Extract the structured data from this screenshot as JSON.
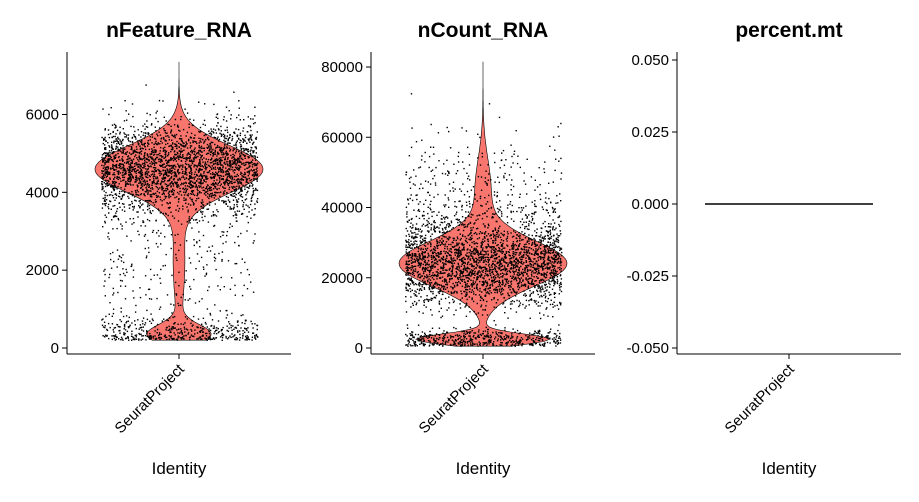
{
  "chart_data": [
    {
      "type": "violin",
      "title": "nFeature_RNA",
      "xlabel": "Identity",
      "ylabel": "",
      "categories": [
        "SeuratProject"
      ],
      "color": "#F8766D",
      "yticks": [
        0,
        2000,
        4000,
        6000
      ],
      "ylim": [
        0,
        7400
      ],
      "y_max": 7350,
      "y_min": 200,
      "n_points": 3400,
      "distribution": [
        {
          "center": 4600,
          "sd": 600,
          "weight": 0.78
        },
        {
          "center": 350,
          "sd": 250,
          "weight": 0.12
        },
        {
          "center": 2200,
          "sd": 1100,
          "weight": 0.1
        }
      ]
    },
    {
      "type": "violin",
      "title": "nCount_RNA",
      "xlabel": "Identity",
      "ylabel": "",
      "categories": [
        "SeuratProject"
      ],
      "color": "#F8766D",
      "yticks": [
        0,
        20000,
        40000,
        60000,
        80000
      ],
      "ylim": [
        0,
        82000
      ],
      "y_max": 81500,
      "y_min": 500,
      "n_points": 3400,
      "distribution": [
        {
          "center": 24000,
          "sd": 6500,
          "weight": 0.76
        },
        {
          "center": 2500,
          "sd": 1500,
          "weight": 0.14
        },
        {
          "center": 45000,
          "sd": 9000,
          "weight": 0.1
        }
      ]
    },
    {
      "type": "violin",
      "title": "percent.mt",
      "xlabel": "Identity",
      "ylabel": "",
      "categories": [
        "SeuratProject"
      ],
      "color": "#F8766D",
      "yticks": [
        -0.05,
        -0.025,
        0,
        0.025,
        0.05
      ],
      "ytick_labels": [
        "-0.050",
        "-0.025",
        "0.000",
        "0.025",
        "0.050"
      ],
      "ylim": [
        -0.05,
        0.05
      ],
      "constant_value": 0
    }
  ]
}
